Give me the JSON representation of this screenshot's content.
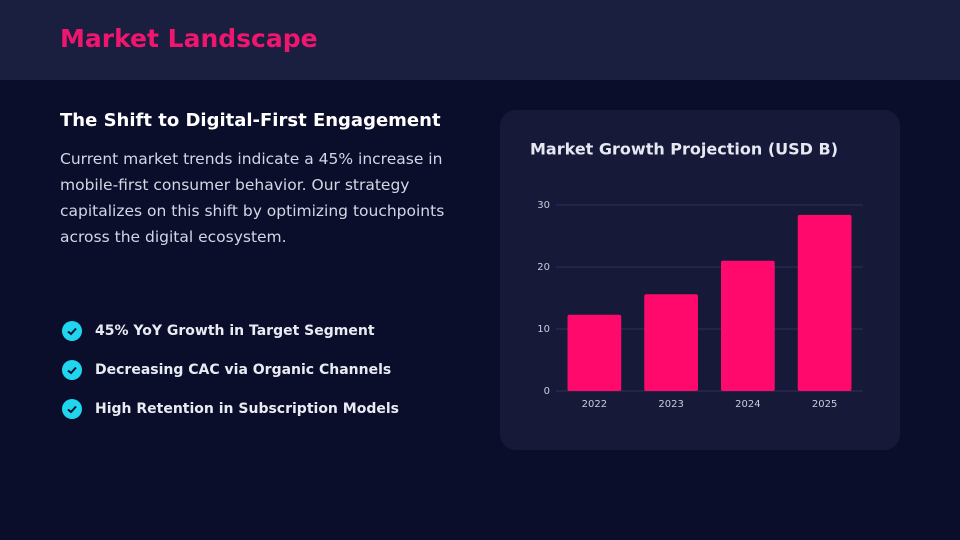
{
  "header": {
    "title": "Market Landscape"
  },
  "intro": {
    "heading": "The Shift to Digital-First Engagement",
    "paragraph": "Current market trends indicate a 45% increase in mobile-first consumer behavior. Our strategy capitalizes on this shift by optimizing touchpoints across the digital ecosystem."
  },
  "highlights": [
    "45% YoY Growth in Target Segment",
    "Decreasing CAC via Organic Channels",
    "High Retention in Subscription Models"
  ],
  "chart_data": {
    "type": "bar",
    "title": "Market Growth Projection (USD B)",
    "categories": [
      "2022",
      "2023",
      "2024",
      "2025"
    ],
    "values": [
      12.3,
      15.6,
      21,
      28.4
    ],
    "color": "#ff0a6c",
    "ylim": [
      0,
      30
    ],
    "yticks": [
      0,
      10,
      20,
      30
    ],
    "grid": true
  }
}
